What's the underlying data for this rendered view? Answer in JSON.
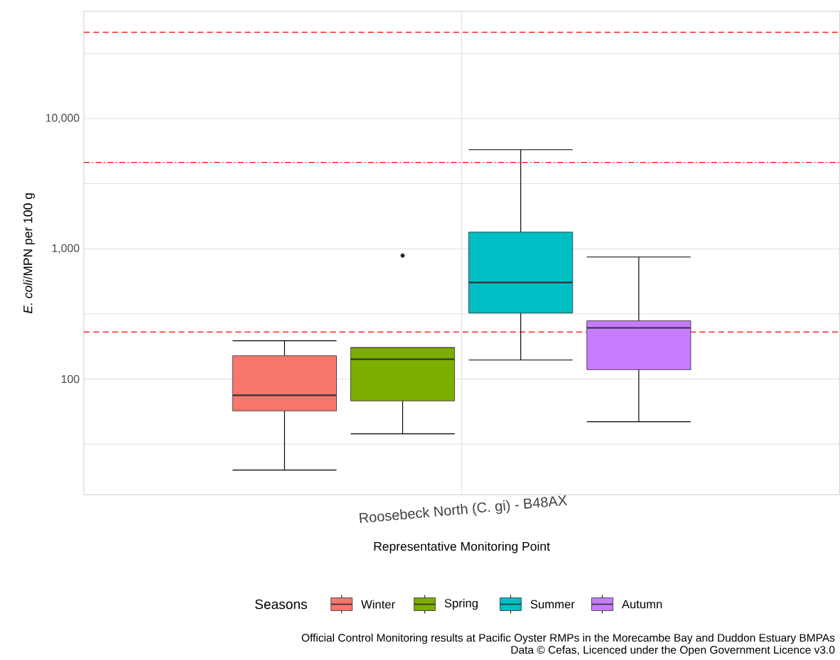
{
  "chart_data": {
    "type": "box",
    "xlabel": "Representative Monitoring Point",
    "ylabel": "*E. coli*/MPN per 100 g",
    "categories": [
      "Roosebeck North (C. gi) - B48AX"
    ],
    "series": [
      {
        "name": "Winter",
        "color": "#f8766d",
        "boxes": [
          {
            "low": 20,
            "q1": 57,
            "median": 75,
            "q3": 151,
            "high": 197
          }
        ]
      },
      {
        "name": "Spring",
        "color": "#7cae00",
        "boxes": [
          {
            "low": 38,
            "q1": 68,
            "median": 142,
            "q3": 174,
            "high": 174,
            "outliers": [
              888
            ]
          }
        ]
      },
      {
        "name": "Summer",
        "color": "#00bfc4",
        "boxes": [
          {
            "low": 140,
            "q1": 321,
            "median": 551,
            "q3": 1343,
            "high": 5760
          }
        ]
      },
      {
        "name": "Autumn",
        "color": "#c77cff",
        "boxes": [
          {
            "low": 47,
            "q1": 118,
            "median": 247,
            "q3": 280,
            "high": 865
          }
        ]
      }
    ],
    "log": "y",
    "ylim": [
      12.9,
      66500
    ],
    "yticks": [
      {
        "value": 31.6,
        "label": null
      },
      100,
      {
        "value": 316,
        "label": null
      },
      {
        "value": 1000,
        "label": "1,000"
      },
      {
        "value": 3162,
        "label": null
      },
      {
        "value": 10000,
        "label": "10,000"
      },
      {
        "value": 31623,
        "label": null
      }
    ],
    "grid": true,
    "ref_lines": [
      {
        "axis": "y",
        "value": 46000,
        "color": "#ff0000",
        "line_style": "dashed"
      },
      {
        "axis": "y",
        "value": 4600,
        "color": "#ff0000",
        "line_style": "dashdot"
      },
      {
        "axis": "y",
        "value": 230,
        "color": "#ff0000",
        "line_style": "dashed"
      }
    ],
    "legend": "bottom",
    "legend_title": "Seasons",
    "annotations": [
      "Official Control Monitoring results at Pacific Oyster RMPs in the Morecambe Bay and Duddon Estuary BMPAs",
      "Data © Cefas, Licenced under the Open Government Licence v3.0"
    ]
  }
}
